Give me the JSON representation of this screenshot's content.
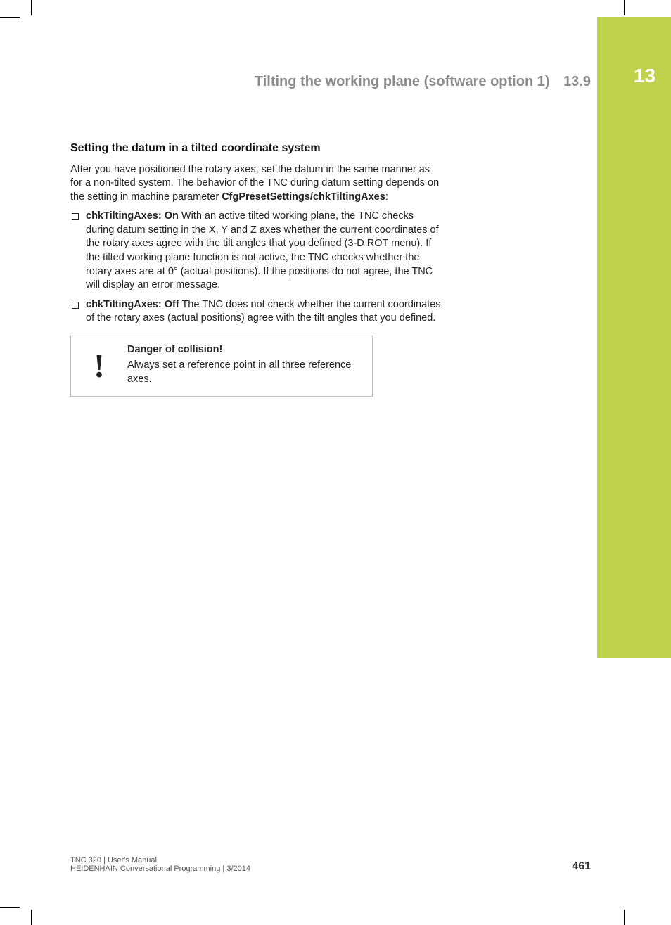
{
  "colors": {
    "accent_green": "#bfd24b",
    "header_gray": "#8b8b8b",
    "text": "#222222",
    "border_gray": "#bcbcbc",
    "background": "#ffffff"
  },
  "typography": {
    "body_fontsize_pt": 11,
    "h3_fontsize_pt": 12,
    "section_header_fontsize_pt": 15,
    "chapter_number_fontsize_pt": 21,
    "footer_fontsize_pt": 8
  },
  "chapter_number": "13",
  "section": {
    "title": "Tilting the working plane (software option 1)",
    "number": "13.9"
  },
  "heading": "Setting the datum in a tilted coordinate system",
  "intro": {
    "text": "After you have positioned the rotary axes, set the datum in the same manner as for a non-tilted system. The behavior of the TNC during datum setting depends on the setting in machine parameter ",
    "param": "CfgPresetSettings/chkTiltingAxes",
    "after": ":"
  },
  "bullets": [
    {
      "lead": "chkTiltingAxes: On",
      "body": " With an active tilted working plane, the TNC checks during datum setting in the X, Y and Z axes whether the current coordinates of the rotary axes agree with the tilt angles that you defined (3-D ROT menu). If the tilted working plane function is not active, the TNC checks whether the rotary axes are at 0° (actual positions). If the positions do not agree, the TNC will display an error message."
    },
    {
      "lead": "chkTiltingAxes: Off",
      "body": " The TNC does not check whether the current coordinates of the rotary axes (actual positions) agree with the tilt angles that you defined."
    }
  ],
  "warning": {
    "icon_glyph": "!",
    "title": "Danger of collision!",
    "body": "Always set a reference point in all three reference axes."
  },
  "footer": {
    "line1": "TNC 320 | User's Manual",
    "line2": "HEIDENHAIN Conversational Programming | 3/2014",
    "page_number": "461"
  }
}
